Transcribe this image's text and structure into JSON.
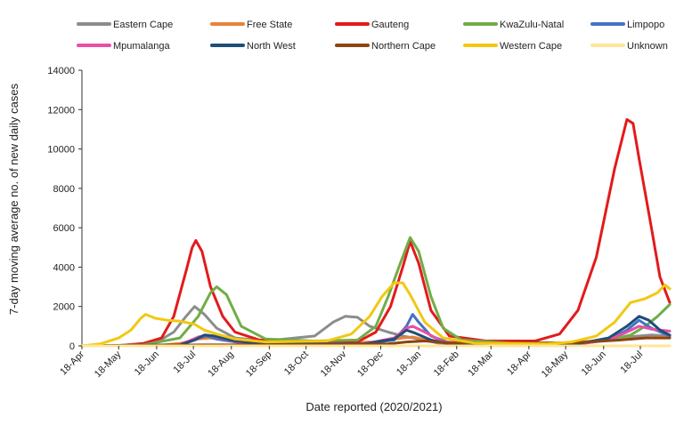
{
  "chart_data": {
    "type": "line",
    "title": "",
    "xlabel": "Date reported (2020/2021)",
    "ylabel": "7-day moving average no. of new daily cases",
    "ylim": [
      0,
      14000
    ],
    "yticks": [
      0,
      2000,
      4000,
      6000,
      8000,
      10000,
      12000,
      14000
    ],
    "ytick_labels": [
      "0",
      "2000",
      "4000",
      "6000",
      "8000",
      "10000",
      "12000",
      "14000"
    ],
    "x_unit": "days since 18-Apr-2020",
    "xlim": [
      0,
      480
    ],
    "xticks": [
      0,
      30,
      61,
      91,
      122,
      153,
      183,
      214,
      244,
      275,
      306,
      334,
      365,
      395,
      426,
      456
    ],
    "xtick_labels": [
      "18-Apr",
      "18-May",
      "18-Jun",
      "18-Jul",
      "18-Aug",
      "18-Sep",
      "18-Oct",
      "18-Nov",
      "18-Dec",
      "18-Jan",
      "18-Feb",
      "18-Mar",
      "18-Apr",
      "18-May",
      "18-Jun",
      "18-Jul"
    ],
    "legend_position": "top",
    "series": [
      {
        "name": "Eastern Cape",
        "color": "#8c8c8c",
        "points": [
          [
            0,
            0
          ],
          [
            40,
            20
          ],
          [
            60,
            150
          ],
          [
            75,
            700
          ],
          [
            85,
            1500
          ],
          [
            92,
            2000
          ],
          [
            100,
            1600
          ],
          [
            110,
            900
          ],
          [
            125,
            400
          ],
          [
            150,
            250
          ],
          [
            190,
            500
          ],
          [
            205,
            1200
          ],
          [
            215,
            1500
          ],
          [
            225,
            1450
          ],
          [
            235,
            1000
          ],
          [
            250,
            700
          ],
          [
            262,
            500
          ],
          [
            275,
            350
          ],
          [
            290,
            150
          ],
          [
            320,
            80
          ],
          [
            380,
            80
          ],
          [
            420,
            250
          ],
          [
            445,
            450
          ],
          [
            465,
            550
          ],
          [
            480,
            500
          ]
        ]
      },
      {
        "name": "Free State",
        "color": "#e8823a",
        "points": [
          [
            0,
            0
          ],
          [
            60,
            10
          ],
          [
            80,
            120
          ],
          [
            95,
            350
          ],
          [
            105,
            400
          ],
          [
            120,
            250
          ],
          [
            150,
            150
          ],
          [
            200,
            150
          ],
          [
            240,
            200
          ],
          [
            262,
            400
          ],
          [
            270,
            450
          ],
          [
            285,
            250
          ],
          [
            310,
            100
          ],
          [
            380,
            100
          ],
          [
            420,
            250
          ],
          [
            445,
            350
          ],
          [
            460,
            400
          ],
          [
            480,
            450
          ]
        ]
      },
      {
        "name": "Gauteng",
        "color": "#e31a1c",
        "points": [
          [
            0,
            0
          ],
          [
            30,
            20
          ],
          [
            50,
            120
          ],
          [
            65,
            400
          ],
          [
            75,
            1500
          ],
          [
            85,
            3800
          ],
          [
            90,
            5000
          ],
          [
            93,
            5350
          ],
          [
            98,
            4800
          ],
          [
            105,
            3000
          ],
          [
            115,
            1500
          ],
          [
            125,
            700
          ],
          [
            145,
            300
          ],
          [
            170,
            200
          ],
          [
            200,
            150
          ],
          [
            225,
            200
          ],
          [
            240,
            700
          ],
          [
            252,
            2000
          ],
          [
            262,
            4000
          ],
          [
            268,
            5300
          ],
          [
            275,
            4200
          ],
          [
            285,
            1800
          ],
          [
            300,
            500
          ],
          [
            330,
            250
          ],
          [
            370,
            250
          ],
          [
            390,
            600
          ],
          [
            405,
            1800
          ],
          [
            420,
            4500
          ],
          [
            435,
            9000
          ],
          [
            445,
            11500
          ],
          [
            450,
            11300
          ],
          [
            455,
            9500
          ],
          [
            465,
            6000
          ],
          [
            472,
            3500
          ],
          [
            480,
            2200
          ]
        ]
      },
      {
        "name": "KwaZulu-Natal",
        "color": "#70ad47",
        "points": [
          [
            0,
            0
          ],
          [
            50,
            50
          ],
          [
            80,
            400
          ],
          [
            95,
            1500
          ],
          [
            105,
            2700
          ],
          [
            110,
            3000
          ],
          [
            118,
            2600
          ],
          [
            130,
            1000
          ],
          [
            150,
            350
          ],
          [
            190,
            250
          ],
          [
            225,
            300
          ],
          [
            240,
            1000
          ],
          [
            250,
            2500
          ],
          [
            260,
            4200
          ],
          [
            268,
            5500
          ],
          [
            275,
            4800
          ],
          [
            285,
            2500
          ],
          [
            295,
            900
          ],
          [
            310,
            300
          ],
          [
            350,
            150
          ],
          [
            400,
            150
          ],
          [
            430,
            300
          ],
          [
            448,
            550
          ],
          [
            460,
            1000
          ],
          [
            470,
            1500
          ],
          [
            480,
            2100
          ]
        ]
      },
      {
        "name": "Limpopo",
        "color": "#4472c4",
        "points": [
          [
            0,
            0
          ],
          [
            80,
            20
          ],
          [
            95,
            400
          ],
          [
            102,
            500
          ],
          [
            110,
            350
          ],
          [
            130,
            150
          ],
          [
            230,
            100
          ],
          [
            255,
            300
          ],
          [
            265,
            1000
          ],
          [
            270,
            1600
          ],
          [
            275,
            1200
          ],
          [
            285,
            500
          ],
          [
            300,
            150
          ],
          [
            400,
            50
          ],
          [
            430,
            300
          ],
          [
            445,
            800
          ],
          [
            455,
            1300
          ],
          [
            465,
            900
          ],
          [
            480,
            500
          ]
        ]
      },
      {
        "name": "Mpumalanga",
        "color": "#e84fa4",
        "points": [
          [
            0,
            0
          ],
          [
            80,
            50
          ],
          [
            95,
            450
          ],
          [
            102,
            550
          ],
          [
            110,
            450
          ],
          [
            130,
            150
          ],
          [
            230,
            100
          ],
          [
            255,
            400
          ],
          [
            265,
            900
          ],
          [
            270,
            1000
          ],
          [
            280,
            700
          ],
          [
            295,
            200
          ],
          [
            400,
            50
          ],
          [
            430,
            300
          ],
          [
            445,
            700
          ],
          [
            455,
            1000
          ],
          [
            465,
            850
          ],
          [
            480,
            750
          ]
        ]
      },
      {
        "name": "North West",
        "color": "#1f4e79",
        "points": [
          [
            0,
            0
          ],
          [
            80,
            50
          ],
          [
            92,
            300
          ],
          [
            100,
            550
          ],
          [
            108,
            500
          ],
          [
            125,
            250
          ],
          [
            150,
            100
          ],
          [
            230,
            100
          ],
          [
            255,
            350
          ],
          [
            265,
            800
          ],
          [
            272,
            650
          ],
          [
            285,
            300
          ],
          [
            300,
            100
          ],
          [
            400,
            50
          ],
          [
            430,
            400
          ],
          [
            445,
            1000
          ],
          [
            455,
            1500
          ],
          [
            463,
            1300
          ],
          [
            472,
            800
          ],
          [
            480,
            550
          ]
        ]
      },
      {
        "name": "Northern Cape",
        "color": "#8b4513",
        "points": [
          [
            0,
            0
          ],
          [
            100,
            50
          ],
          [
            150,
            60
          ],
          [
            250,
            100
          ],
          [
            265,
            200
          ],
          [
            280,
            250
          ],
          [
            300,
            150
          ],
          [
            400,
            150
          ],
          [
            440,
            300
          ],
          [
            460,
            400
          ],
          [
            480,
            400
          ]
        ]
      },
      {
        "name": "Western Cape",
        "color": "#f2c811",
        "points": [
          [
            0,
            0
          ],
          [
            15,
            100
          ],
          [
            30,
            400
          ],
          [
            40,
            800
          ],
          [
            48,
            1400
          ],
          [
            52,
            1600
          ],
          [
            60,
            1400
          ],
          [
            70,
            1300
          ],
          [
            80,
            1250
          ],
          [
            92,
            1100
          ],
          [
            100,
            800
          ],
          [
            110,
            600
          ],
          [
            125,
            350
          ],
          [
            150,
            200
          ],
          [
            200,
            250
          ],
          [
            220,
            600
          ],
          [
            235,
            1500
          ],
          [
            245,
            2500
          ],
          [
            255,
            3200
          ],
          [
            262,
            3200
          ],
          [
            268,
            2600
          ],
          [
            280,
            1200
          ],
          [
            295,
            400
          ],
          [
            320,
            150
          ],
          [
            380,
            100
          ],
          [
            400,
            200
          ],
          [
            420,
            500
          ],
          [
            435,
            1200
          ],
          [
            448,
            2200
          ],
          [
            460,
            2400
          ],
          [
            470,
            2700
          ],
          [
            476,
            3100
          ],
          [
            480,
            2900
          ]
        ]
      },
      {
        "name": "Unknown",
        "color": "#ffe699",
        "points": [
          [
            0,
            0
          ],
          [
            480,
            0
          ]
        ]
      }
    ]
  }
}
